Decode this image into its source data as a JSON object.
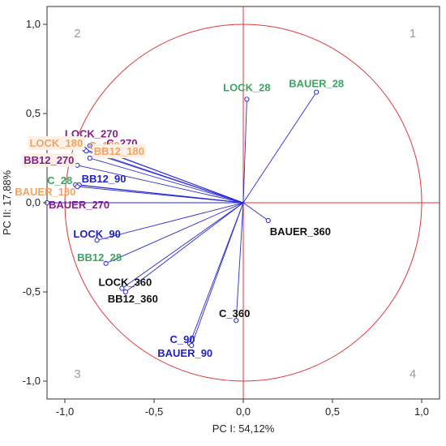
{
  "chart_data": {
    "type": "scatter",
    "subtype": "pca-correlation-circle",
    "xlabel": "PC I: 54,12%",
    "ylabel": "PC II: 17,88%",
    "xlim": [
      -1.1,
      1.1
    ],
    "ylim": [
      -1.1,
      1.1
    ],
    "x_ticks": [
      "-1,0",
      "-0,5",
      "0,0",
      "0,5",
      "1,0"
    ],
    "y_ticks": [
      "1,0",
      "0,5",
      "0,0",
      "-0,5",
      "-1,0"
    ],
    "unit_circle": true,
    "quadrant_labels": [
      {
        "text": "1",
        "x": 0.95,
        "y": 0.95
      },
      {
        "text": "2",
        "x": -0.93,
        "y": 0.95
      },
      {
        "text": "3",
        "x": -0.93,
        "y": -0.96
      },
      {
        "text": "4",
        "x": 0.95,
        "y": -0.96
      }
    ],
    "points": [
      {
        "label": "LOCK_28",
        "x": 0.02,
        "y": 0.58,
        "color": "#3aa660",
        "anchor": "middle"
      },
      {
        "label": "BAUER_28",
        "x": 0.41,
        "y": 0.62,
        "color": "#3aa660",
        "anchor": "middle"
      },
      {
        "label": "LOCK_270",
        "x": -0.86,
        "y": 0.32,
        "color": "#8b1a8b",
        "anchor": "middle"
      },
      {
        "label": "C_270",
        "x": -0.84,
        "y": 0.31,
        "color": "#8b1a8b",
        "anchor": "start"
      },
      {
        "label": "LOCK_180",
        "x": -0.89,
        "y": 0.3,
        "color": "#f4a261",
        "anchor": "end",
        "bg": true
      },
      {
        "label": "C_180",
        "x": -0.88,
        "y": 0.29,
        "color": "#f4a261",
        "anchor": "start"
      },
      {
        "label": "BB12_180",
        "x": -0.86,
        "y": 0.25,
        "color": "#f4a261",
        "anchor": "start",
        "bg": true
      },
      {
        "label": "BB12_270",
        "x": -0.93,
        "y": 0.21,
        "color": "#8b1a8b",
        "anchor": "end",
        "bg": true
      },
      {
        "label": "C_28",
        "x": -0.94,
        "y": 0.1,
        "color": "#3aa660",
        "anchor": "end"
      },
      {
        "label": "BB12_90",
        "x": -0.92,
        "y": 0.1,
        "color": "#2020cc",
        "anchor": "start"
      },
      {
        "label": "BAUER_180",
        "x": -0.93,
        "y": 0.09,
        "color": "#f4a261",
        "anchor": "end"
      },
      {
        "label": "BAUER_270",
        "x": -1.1,
        "y": 0.0,
        "color": "#8b1a8b",
        "anchor": "start"
      },
      {
        "label": "BAUER_360",
        "x": 0.14,
        "y": -0.1,
        "color": "#111111",
        "anchor": "start"
      },
      {
        "label": "LOCK_90",
        "x": -0.82,
        "y": -0.21,
        "color": "#2020cc",
        "anchor": "middle"
      },
      {
        "label": "BB12_28",
        "x": -0.77,
        "y": -0.34,
        "color": "#3aa660",
        "anchor": "middle"
      },
      {
        "label": "LOCK_360",
        "x": -0.68,
        "y": -0.48,
        "color": "#111111",
        "anchor": "middle"
      },
      {
        "label": "BB12_360",
        "x": -0.66,
        "y": -0.5,
        "color": "#111111",
        "anchor": "middle"
      },
      {
        "label": "C_360",
        "x": -0.04,
        "y": -0.66,
        "color": "#111111",
        "anchor": "middle"
      },
      {
        "label": "C_90",
        "x": -0.3,
        "y": -0.79,
        "color": "#2020cc",
        "anchor": "middle"
      },
      {
        "label": "BAUER_90",
        "x": -0.29,
        "y": -0.8,
        "color": "#2020cc",
        "anchor": "middle"
      }
    ],
    "colors": {
      "vector": "#2a2ad4",
      "circle": "#e0363a",
      "axes": "#e0363a",
      "frame": "#333333"
    },
    "grid": false
  }
}
